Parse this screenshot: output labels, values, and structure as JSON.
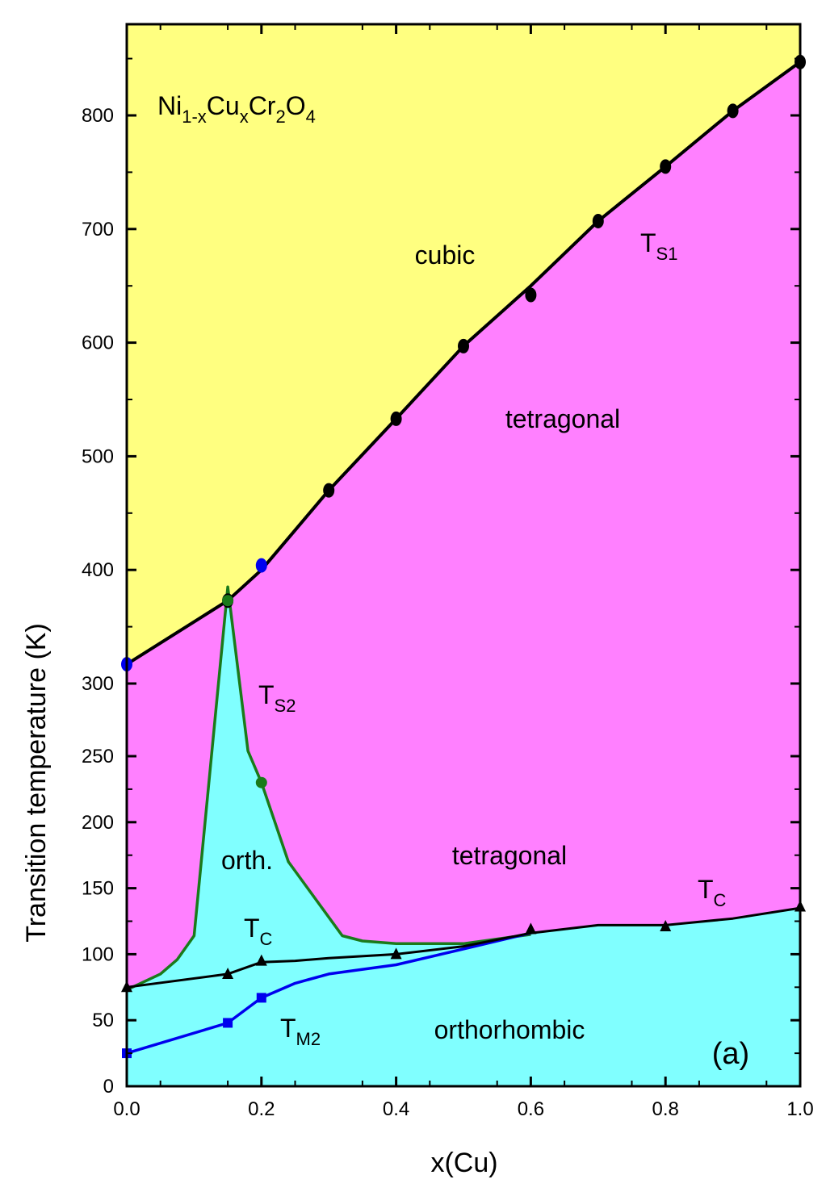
{
  "chart_data": {
    "type": "line",
    "xlabel": "x(Cu)",
    "ylabel": "Transition temperature (K)",
    "xlim": [
      0,
      1.0
    ],
    "ylim": [
      0,
      880
    ],
    "y_axis_break": {
      "upper_segment": [
        275,
        880
      ],
      "lower_segment": [
        0,
        275
      ]
    },
    "x_ticks": [
      "0.0",
      "0.2",
      "0.4",
      "0.6",
      "0.8",
      "1.0"
    ],
    "x_tick_values": [
      0,
      0.2,
      0.4,
      0.6,
      0.8,
      1.0
    ],
    "y_ticks": [
      "0",
      "50",
      "100",
      "150",
      "200",
      "250",
      "300",
      "400",
      "500",
      "600",
      "700",
      "800"
    ],
    "y_tick_values": [
      0,
      50,
      100,
      150,
      200,
      250,
      300,
      400,
      500,
      600,
      700,
      800
    ],
    "panel_label": "(a)",
    "compound": {
      "base": "Ni",
      "s1": "1-x",
      "m1": "Cu",
      "s2": "x",
      "m2": "Cr",
      "s3": "2",
      "m3": "O",
      "s4": "4"
    },
    "colors": {
      "cubic": "#ffff80",
      "tetragonal": "#ff80ff",
      "orthorhombic": "#80ffff",
      "ts1": "#000000",
      "ts2": "#1a7a1a",
      "tc": "#000000",
      "tm2": "#0000ee",
      "blue_marker": "#0000ee"
    },
    "regions": {
      "cubic": "cubic",
      "tetragonal_upper": "tetragonal",
      "tetragonal_lower": "tetragonal",
      "orth_small": "orth.",
      "orthorhombic": "orthorhombic"
    },
    "series": [
      {
        "label_main": "T",
        "label_sub": "S1",
        "line": [
          [
            0,
            317
          ],
          [
            0.15,
            373
          ],
          [
            0.2,
            400
          ],
          [
            0.25,
            435
          ],
          [
            0.3,
            470
          ],
          [
            0.4,
            533
          ],
          [
            0.5,
            597
          ],
          [
            0.6,
            650
          ],
          [
            0.7,
            707
          ],
          [
            0.8,
            755
          ],
          [
            0.9,
            804
          ],
          [
            1.0,
            847
          ]
        ],
        "points_black": [
          [
            0.15,
            373
          ],
          [
            0.3,
            470
          ],
          [
            0.4,
            533
          ],
          [
            0.5,
            597
          ],
          [
            0.6,
            642
          ],
          [
            0.7,
            707
          ],
          [
            0.8,
            755
          ],
          [
            0.9,
            804
          ],
          [
            1.0,
            847
          ]
        ],
        "points_blue": [
          [
            0,
            317
          ],
          [
            0.2,
            404
          ]
        ]
      },
      {
        "label_main": "T",
        "label_sub": "S2",
        "line": [
          [
            0,
            73
          ],
          [
            0.05,
            85
          ],
          [
            0.075,
            96
          ],
          [
            0.1,
            114
          ],
          [
            0.15,
            385
          ],
          [
            0.18,
            254
          ],
          [
            0.2,
            230
          ],
          [
            0.24,
            170
          ],
          [
            0.32,
            114
          ],
          [
            0.35,
            110
          ],
          [
            0.4,
            108
          ],
          [
            0.5,
            108
          ],
          [
            0.6,
            115
          ]
        ],
        "points": [
          [
            0.15,
            373
          ],
          [
            0.2,
            230
          ]
        ]
      },
      {
        "label_main": "T",
        "label_sub": "C",
        "line": [
          [
            0,
            75
          ],
          [
            0.15,
            85
          ],
          [
            0.2,
            94
          ],
          [
            0.25,
            95
          ],
          [
            0.3,
            97
          ],
          [
            0.4,
            100
          ],
          [
            0.5,
            106
          ],
          [
            0.6,
            116
          ],
          [
            0.7,
            122
          ],
          [
            0.8,
            122
          ],
          [
            0.9,
            127
          ],
          [
            1.0,
            135
          ]
        ],
        "points": [
          [
            0,
            75
          ],
          [
            0.15,
            85
          ],
          [
            0.2,
            95
          ],
          [
            0.4,
            100
          ],
          [
            0.6,
            119
          ],
          [
            0.8,
            121
          ],
          [
            1.0,
            136
          ]
        ]
      },
      {
        "label_main": "T",
        "label_sub": "M2",
        "line": [
          [
            0,
            25
          ],
          [
            0.15,
            48
          ],
          [
            0.2,
            67
          ],
          [
            0.25,
            78
          ],
          [
            0.3,
            85
          ],
          [
            0.4,
            92
          ],
          [
            0.5,
            104
          ],
          [
            0.6,
            116
          ]
        ],
        "points": [
          [
            0,
            25
          ],
          [
            0.15,
            48
          ],
          [
            0.2,
            67
          ]
        ]
      }
    ]
  }
}
